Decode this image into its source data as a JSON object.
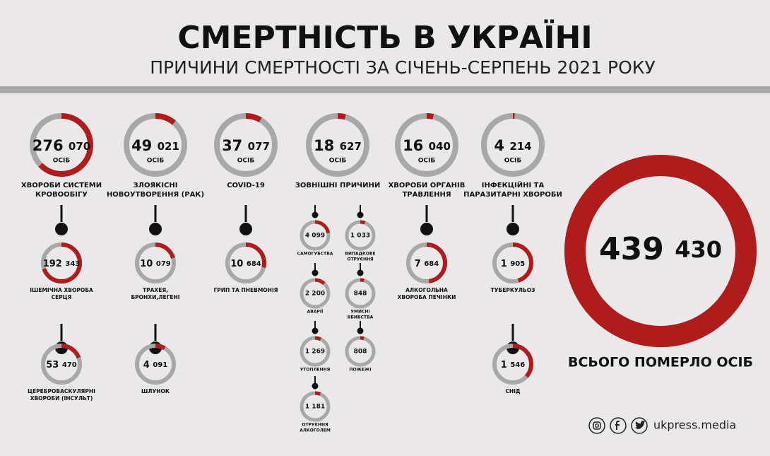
{
  "header": {
    "title": "СМЕРТНІСТЬ В УКРАЇНІ",
    "subtitle": "ПРИЧИНИ СМЕРТНОСТІ ЗА СІЧЕНЬ-СЕРПЕНЬ 2021 РОКУ"
  },
  "unit": "ОСІБ",
  "total": {
    "value": 439430,
    "label": "439 430",
    "caption": "ВСЬОГО ПОМЕРЛО ОСІБ"
  },
  "groups": [
    {
      "value": 276070,
      "label": "276 070",
      "name": [
        "ХВОРОБИ СИСТЕМИ",
        "КРОВООБІГУ"
      ],
      "items": [
        {
          "value": 192343,
          "label": "192 343",
          "name": [
            "ІШЕМІЧНА ХВОРОБА",
            "СЕРЦЯ"
          ]
        },
        {
          "value": 53470,
          "label": "53 470",
          "name": [
            "ЦЕРЕБРОВАСКУЛЯРНІ",
            "ХВОРОБИ (ІНСУЛЬТ)"
          ]
        }
      ]
    },
    {
      "value": 49021,
      "label": "49 021",
      "name": [
        "ЗЛОЯКІСНІ",
        "НОВОУТВОРЕННЯ (РАК)"
      ],
      "items": [
        {
          "value": 10079,
          "label": "10 079",
          "name": [
            "ТРАХЕЯ,",
            "БРОНХИ,ЛЕГЕНІ"
          ]
        },
        {
          "value": 4091,
          "label": "4 091",
          "name": [
            "ШЛУНОК"
          ]
        }
      ]
    },
    {
      "value": 37077,
      "label": "37 077",
      "name": [
        "COVID-19"
      ],
      "items": [
        {
          "value": 10684,
          "label": "10 684",
          "name": [
            "ГРИП ТА ПНЕВМОНІЯ"
          ]
        }
      ]
    },
    {
      "value": 18627,
      "label": "18 627",
      "name": [
        "ЗОВНІШНІ ПРИЧИНИ"
      ],
      "items": [
        {
          "value": 4099,
          "label": "4 099",
          "name": [
            "САМОГУБСТВА"
          ]
        },
        {
          "value": 1033,
          "label": "1 033",
          "name": [
            "ВИПАДКОВЕ",
            "ОТРУЄННЯ"
          ]
        },
        {
          "value": 2200,
          "label": "2 200",
          "name": [
            "АВАРІЇ"
          ]
        },
        {
          "value": 848,
          "label": "848",
          "name": [
            "УМИСНІ",
            "ВБИВСТВА"
          ]
        },
        {
          "value": 1269,
          "label": "1 269",
          "name": [
            "УТОПЛЕННЯ"
          ]
        },
        {
          "value": 808,
          "label": "808",
          "name": [
            "ПОЖЕЖІ"
          ]
        },
        {
          "value": 1181,
          "label": "1 181",
          "name": [
            "ОТРУЄННЯ",
            "АЛКОГОЛЕМ"
          ]
        }
      ]
    },
    {
      "value": 16040,
      "label": "16 040",
      "name": [
        "ХВОРОБИ ОРГАНІВ",
        "ТРАВЛЕННЯ"
      ],
      "items": [
        {
          "value": 7684,
          "label": "7 684",
          "name": [
            "АЛКОГОЛЬНА",
            "ХВОРОБА ПЕЧІНКИ"
          ]
        }
      ]
    },
    {
      "value": 4214,
      "label": "4 214",
      "name": [
        "ІНФЕКЦІЙНІ ТА",
        "ПАРАЗИТАРНІ ХВОРОБИ"
      ],
      "items": [
        {
          "value": 1905,
          "label": "1 905",
          "name": [
            "ТУБЕРКУЛЬОЗ"
          ]
        },
        {
          "value": 1546,
          "label": "1 546",
          "name": [
            "СНІД"
          ]
        }
      ]
    }
  ],
  "footer": {
    "site": "ukpress.media"
  }
}
